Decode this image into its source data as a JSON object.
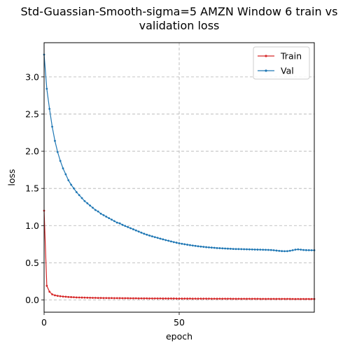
{
  "chart_data": {
    "type": "line",
    "title_lines": [
      "Std-Guassian-Smooth-sigma=5 AMZN Window 6 train vs",
      "validation loss"
    ],
    "xlabel": "epoch",
    "ylabel": "loss",
    "xlim": [
      0,
      100
    ],
    "ylim": [
      -0.165,
      3.46
    ],
    "xticks": [
      0,
      50
    ],
    "yticks": [
      0.0,
      0.5,
      1.0,
      1.5,
      2.0,
      2.5,
      3.0
    ],
    "xtick_labels": [
      "0",
      "50"
    ],
    "ytick_labels": [
      "0.0",
      "0.5",
      "1.0",
      "1.5",
      "2.0",
      "2.5",
      "3.0"
    ],
    "grid": true,
    "legend_position": "top-right",
    "series": [
      {
        "name": "Train",
        "color": "#d62728",
        "values": [
          1.2,
          0.19,
          0.11,
          0.075,
          0.062,
          0.055,
          0.05,
          0.046,
          0.043,
          0.04,
          0.038,
          0.036,
          0.034,
          0.033,
          0.032,
          0.031,
          0.03,
          0.029,
          0.028,
          0.028,
          0.027,
          0.027,
          0.026,
          0.026,
          0.025,
          0.025,
          0.024,
          0.024,
          0.024,
          0.023,
          0.023,
          0.023,
          0.022,
          0.022,
          0.022,
          0.021,
          0.021,
          0.021,
          0.021,
          0.02,
          0.02,
          0.02,
          0.02,
          0.02,
          0.019,
          0.019,
          0.019,
          0.019,
          0.019,
          0.018,
          0.018,
          0.018,
          0.018,
          0.018,
          0.018,
          0.017,
          0.017,
          0.017,
          0.017,
          0.017,
          0.017,
          0.017,
          0.016,
          0.016,
          0.016,
          0.016,
          0.016,
          0.016,
          0.016,
          0.016,
          0.015,
          0.015,
          0.015,
          0.015,
          0.015,
          0.015,
          0.015,
          0.015,
          0.015,
          0.015,
          0.014,
          0.014,
          0.014,
          0.014,
          0.014,
          0.014,
          0.014,
          0.014,
          0.014,
          0.014,
          0.014,
          0.014,
          0.013,
          0.013,
          0.013,
          0.013,
          0.013,
          0.013,
          0.013,
          0.013,
          0.013
        ]
      },
      {
        "name": "Val",
        "color": "#1f77b4",
        "values": [
          3.3,
          2.84,
          2.57,
          2.33,
          2.14,
          1.99,
          1.87,
          1.77,
          1.69,
          1.61,
          1.55,
          1.5,
          1.45,
          1.41,
          1.37,
          1.33,
          1.3,
          1.27,
          1.24,
          1.21,
          1.19,
          1.16,
          1.14,
          1.12,
          1.1,
          1.08,
          1.06,
          1.04,
          1.03,
          1.01,
          0.995,
          0.98,
          0.965,
          0.95,
          0.935,
          0.92,
          0.905,
          0.89,
          0.878,
          0.866,
          0.855,
          0.845,
          0.835,
          0.825,
          0.815,
          0.805,
          0.796,
          0.787,
          0.778,
          0.77,
          0.762,
          0.755,
          0.749,
          0.743,
          0.737,
          0.732,
          0.727,
          0.722,
          0.718,
          0.714,
          0.71,
          0.707,
          0.704,
          0.701,
          0.698,
          0.696,
          0.694,
          0.692,
          0.69,
          0.688,
          0.686,
          0.685,
          0.684,
          0.683,
          0.682,
          0.681,
          0.68,
          0.679,
          0.678,
          0.677,
          0.676,
          0.675,
          0.674,
          0.673,
          0.671,
          0.668,
          0.664,
          0.66,
          0.657,
          0.655,
          0.656,
          0.661,
          0.668,
          0.676,
          0.68,
          0.676,
          0.672,
          0.67,
          0.669,
          0.668,
          0.668
        ]
      }
    ]
  }
}
